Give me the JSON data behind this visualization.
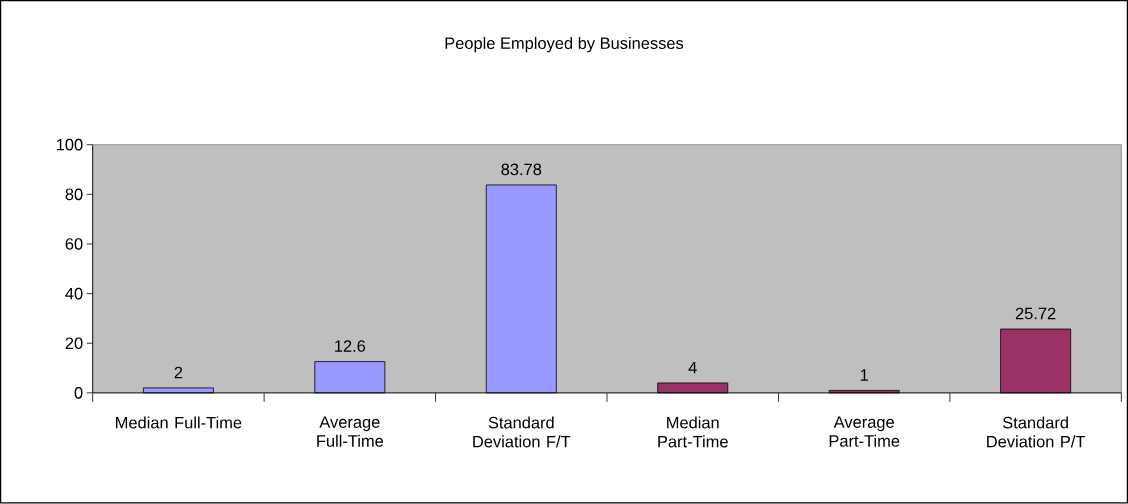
{
  "chart_data": {
    "type": "bar",
    "title": "People Employed by Businesses",
    "categories": [
      "Median Full-Time",
      "Average Full-Time",
      "Standard Deviation F/T",
      "Median Part-Time",
      "Average Part-Time",
      "Standard Deviation P/T"
    ],
    "values": [
      2,
      12.6,
      83.78,
      4,
      1,
      25.72
    ],
    "colors": [
      "#9999ff",
      "#9999ff",
      "#9999ff",
      "#993366",
      "#993366",
      "#993366"
    ],
    "ylim": [
      0,
      100
    ],
    "yticks": [
      0,
      20,
      40,
      60,
      80,
      100
    ],
    "data_labels": true
  }
}
